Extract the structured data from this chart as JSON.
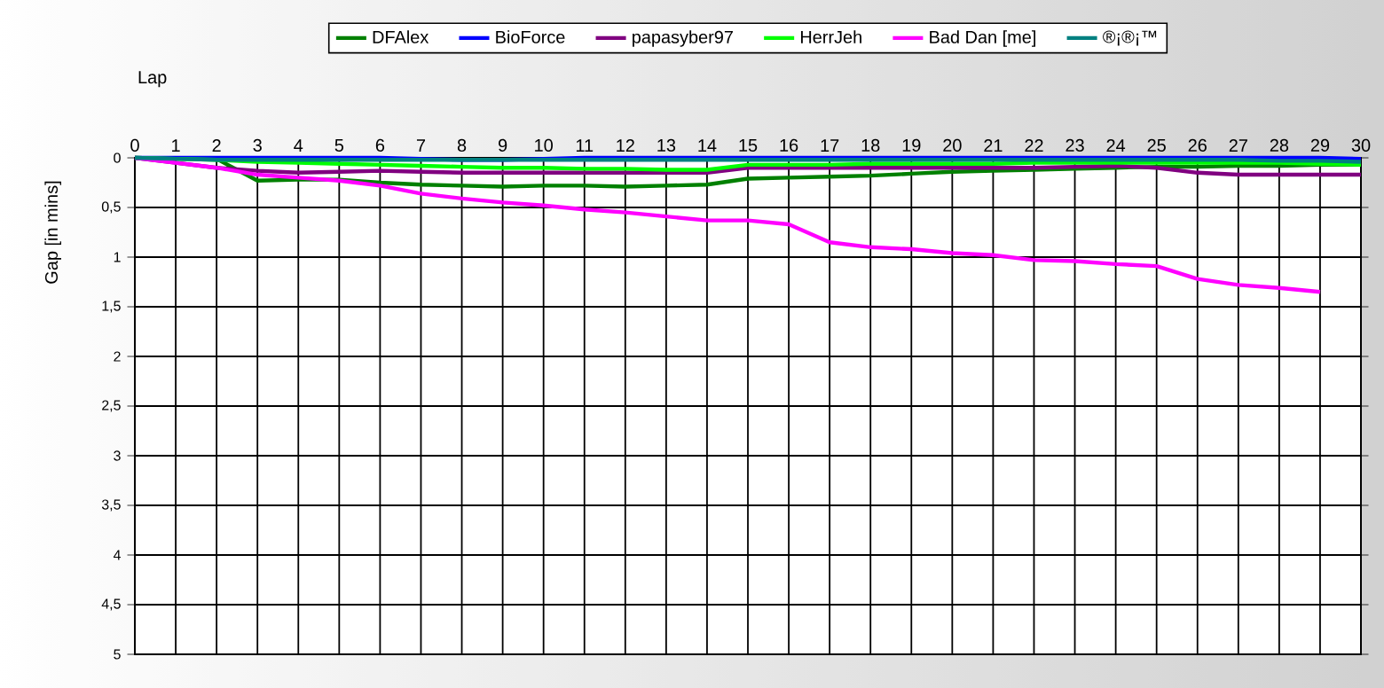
{
  "chart_data": {
    "type": "line",
    "xlabel": "Lap",
    "ylabel": "Gap [in mins]",
    "x": [
      0,
      1,
      2,
      3,
      4,
      5,
      6,
      7,
      8,
      9,
      10,
      11,
      12,
      13,
      14,
      15,
      16,
      17,
      18,
      19,
      20,
      21,
      22,
      23,
      24,
      25,
      26,
      27,
      28,
      29,
      30
    ],
    "series": [
      {
        "name": "DFAlex",
        "color": "#008000",
        "values": [
          0,
          0.01,
          0.01,
          0.23,
          0.22,
          0.22,
          0.25,
          0.27,
          0.28,
          0.29,
          0.28,
          0.28,
          0.29,
          0.28,
          0.27,
          0.21,
          0.2,
          0.19,
          0.18,
          0.16,
          0.14,
          0.13,
          0.12,
          0.11,
          0.1,
          0.09,
          0.09,
          0.08,
          0.08,
          0.07,
          0.07
        ]
      },
      {
        "name": "BioForce",
        "color": "#0000ff",
        "values": [
          0,
          0,
          0,
          0,
          0,
          0,
          0,
          0.01,
          0.02,
          0.02,
          0.01,
          0,
          0,
          0,
          0,
          0,
          0,
          0,
          0,
          0,
          0,
          0,
          0,
          0,
          0,
          0,
          0,
          0,
          0,
          0,
          0.01
        ]
      },
      {
        "name": "papasyber97",
        "color": "#800080",
        "values": [
          0,
          0.05,
          0.1,
          0.13,
          0.15,
          0.14,
          0.13,
          0.14,
          0.15,
          0.15,
          0.15,
          0.15,
          0.15,
          0.15,
          0.15,
          0.1,
          0.1,
          0.1,
          0.1,
          0.1,
          0.1,
          0.1,
          0.1,
          0.09,
          0.08,
          0.1,
          0.15,
          0.17,
          0.17,
          0.17,
          0.17
        ]
      },
      {
        "name": "HerrJeh",
        "color": "#00ff00",
        "values": [
          0,
          0.01,
          0.02,
          0.04,
          0.05,
          0.06,
          0.07,
          0.08,
          0.09,
          0.1,
          0.1,
          0.11,
          0.11,
          0.12,
          0.12,
          0.07,
          0.07,
          0.07,
          0.06,
          0.06,
          0.06,
          0.06,
          0.05,
          0.05,
          0.05,
          0.05,
          0.05,
          0.05,
          0.05,
          0.06,
          0.07
        ]
      },
      {
        "name": "Bad Dan [me]",
        "color": "#ff00ff",
        "values": [
          0,
          0.05,
          0.1,
          0.17,
          0.2,
          0.23,
          0.28,
          0.36,
          0.41,
          0.45,
          0.48,
          0.52,
          0.55,
          0.59,
          0.63,
          0.63,
          0.67,
          0.85,
          0.9,
          0.92,
          0.96,
          0.98,
          1.03,
          1.04,
          1.07,
          1.09,
          1.22,
          1.28,
          1.31,
          1.35,
          null
        ]
      },
      {
        "name": "®¡®¡™",
        "color": "#008080",
        "values": [
          0,
          0.01,
          0.02,
          0.02,
          0.02,
          0.02,
          0.02,
          0.02,
          0.02,
          0.02,
          0.02,
          0.02,
          0.02,
          0.02,
          0.02,
          0.02,
          0.02,
          0.02,
          0.02,
          0.02,
          0.02,
          0.02,
          0.02,
          0.02,
          0.02,
          0.02,
          0.02,
          0.02,
          0.03,
          0.03,
          0.04
        ]
      }
    ],
    "xlim": [
      0,
      30
    ],
    "xticks": [
      0,
      1,
      2,
      3,
      4,
      5,
      6,
      7,
      8,
      9,
      10,
      11,
      12,
      13,
      14,
      15,
      16,
      17,
      18,
      19,
      20,
      21,
      22,
      23,
      24,
      25,
      26,
      27,
      28,
      29,
      30
    ],
    "ylim": [
      5,
      0
    ],
    "yticks": [
      0,
      {
        "value": 0.5,
        "label": "0,5"
      },
      1,
      {
        "value": 1.5,
        "label": "1,5"
      },
      2,
      {
        "value": 2.5,
        "label": "2,5"
      },
      3,
      {
        "value": 3.5,
        "label": "3,5"
      },
      4,
      {
        "value": 4.5,
        "label": "4,5"
      },
      5
    ],
    "grid": true,
    "legend": "top",
    "marker": "none",
    "line_style": "solid"
  }
}
